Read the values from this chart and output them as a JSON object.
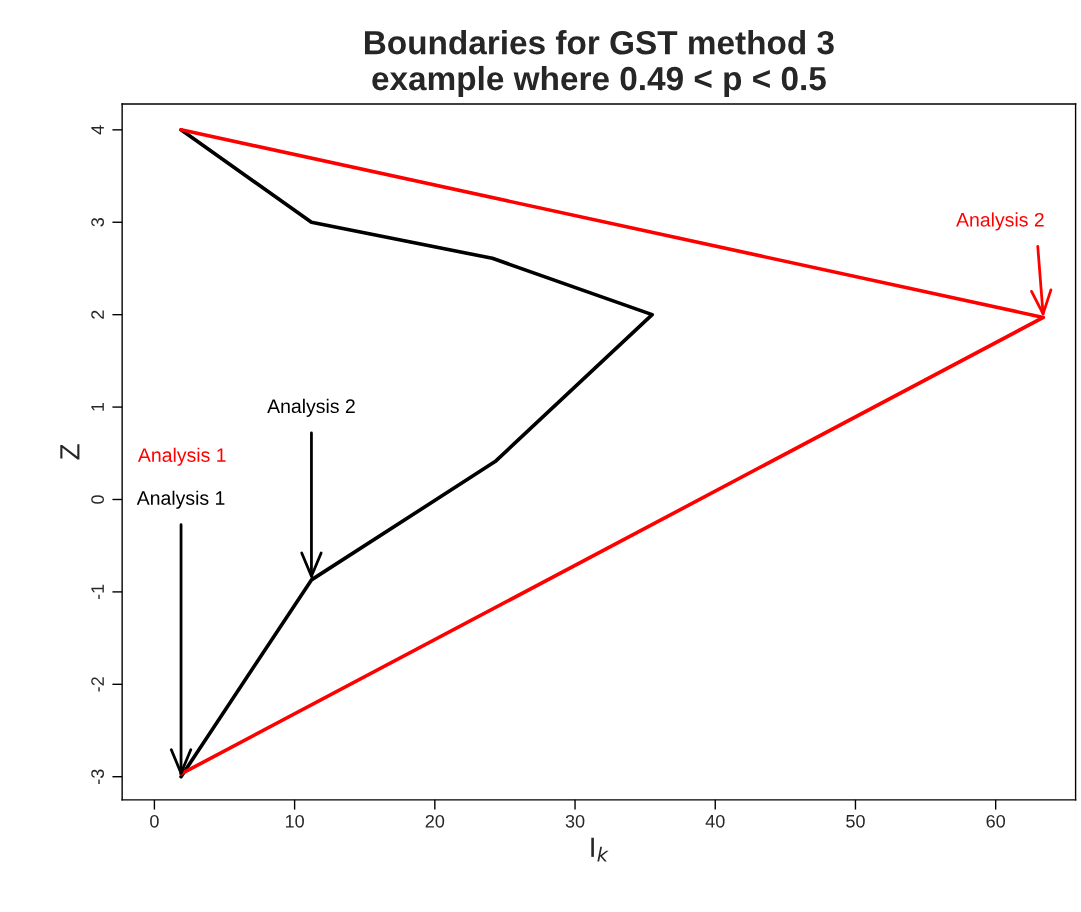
{
  "chart_data": {
    "type": "line",
    "title": "Boundaries for GST method 3\nexample where 0.49 < p < 0.5",
    "xlabel": "I$_{k}$",
    "ylabel": "Z",
    "series": [
      {
        "color": "#000000",
        "x": [
          1.9,
          11.2,
          24.1,
          35.5,
          24.3,
          11.2,
          1.9
        ],
        "values": [
          4,
          3,
          2.61,
          2,
          0.41,
          -0.87,
          -3
        ]
      },
      {
        "color": "#ff0000",
        "x": [
          1.9,
          63.4,
          1.9
        ],
        "values": [
          4,
          1.97,
          -2.97
        ]
      }
    ],
    "annotations": [
      {
        "text": "Analysis 1",
        "x": 1.9,
        "y": -3
      },
      {
        "text": "Analysis 2",
        "x": 11.2,
        "y": -0.87
      },
      {
        "text": "Analysis 2",
        "x": 63.4,
        "y": 1.97
      },
      "Analysis 1"
    ],
    "xlim": [
      -2.3,
      65.7
    ],
    "ylim": [
      -3.25,
      4.28
    ],
    "xticks": [
      0,
      10,
      20,
      30,
      40,
      50,
      60
    ],
    "yticks": [
      -3,
      -2,
      -1,
      0,
      1,
      2,
      3,
      4
    ],
    "grid": false,
    "legend": false,
    "marker": "none",
    "line_style": "solid"
  }
}
